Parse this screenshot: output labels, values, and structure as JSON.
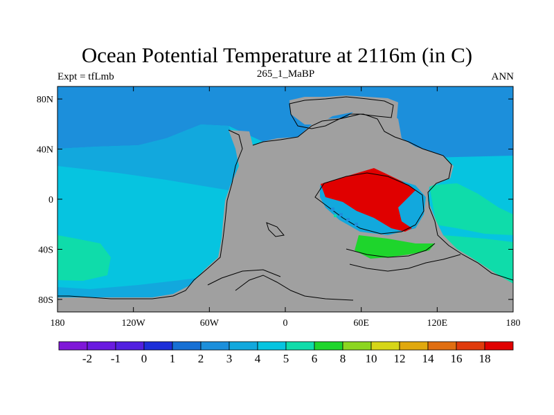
{
  "title": "Ocean Potential Temperature at 2116m (in C)",
  "subtitle_left": "Expt = tfLmb",
  "subtitle_center": "265_1_MaBP",
  "subtitle_right": "ANN",
  "lat_ticks": [
    {
      "value": 80,
      "label": "80N"
    },
    {
      "value": 40,
      "label": "40N"
    },
    {
      "value": 0,
      "label": "0"
    },
    {
      "value": -40,
      "label": "40S"
    },
    {
      "value": -80,
      "label": "80S"
    }
  ],
  "lon_ticks": [
    {
      "value": -180,
      "label": "180"
    },
    {
      "value": -120,
      "label": "120W"
    },
    {
      "value": -60,
      "label": "60W"
    },
    {
      "value": 0,
      "label": "0"
    },
    {
      "value": 60,
      "label": "60E"
    },
    {
      "value": 120,
      "label": "120E"
    },
    {
      "value": 180,
      "label": "180"
    }
  ],
  "colorbar": {
    "colors": [
      "#7f17d8",
      "#6a1be0",
      "#5220e0",
      "#1d2fd8",
      "#1670d4",
      "#1c8fdb",
      "#12a8dd",
      "#06c4e0",
      "#0fdcaa",
      "#1ed52c",
      "#8cd620",
      "#d6d618",
      "#e0a80e",
      "#e06e10",
      "#e03b0c",
      "#e00000"
    ],
    "labels": [
      "-2",
      "-1",
      "0",
      "1",
      "2",
      "3",
      "4",
      "5",
      "6",
      "8",
      "10",
      "12",
      "14",
      "16",
      "18"
    ]
  },
  "map_colors": {
    "land": "#a0a0a0",
    "cold_band": "#1c8fdb",
    "mid_band": "#12a8dd",
    "main_band": "#06c4e0",
    "warm_patch": "#0fdcaa",
    "green_patch": "#1ed52c",
    "hot_patch": "#e00000",
    "outline": "#000000"
  }
}
